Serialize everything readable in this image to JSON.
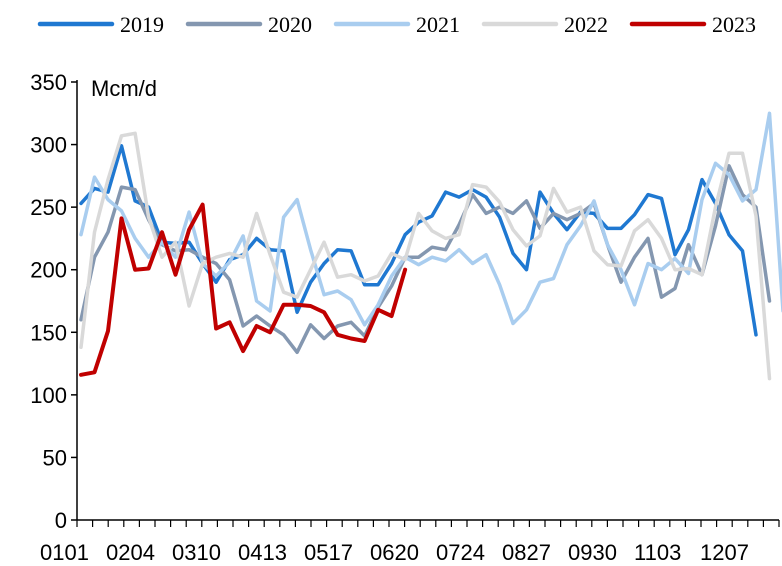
{
  "chart_data": {
    "type": "line",
    "ylabel": "Mcm/d",
    "ylim": [
      0,
      350
    ],
    "yticks": [
      0,
      50,
      100,
      150,
      200,
      250,
      300,
      350
    ],
    "xtick_labels": [
      "0101",
      "0204",
      "0310",
      "0413",
      "0517",
      "0620",
      "0724",
      "0827",
      "0930",
      "1103",
      "1207"
    ],
    "legend_position": "top",
    "grid": false,
    "series": [
      {
        "name": "2019",
        "color": "#1f78d1",
        "values": [
          253,
          265,
          262,
          299,
          255,
          250,
          222,
          221,
          222,
          205,
          190,
          208,
          212,
          225,
          216,
          215,
          166,
          190,
          205,
          216,
          215,
          188,
          188,
          205,
          228,
          238,
          243,
          262,
          258,
          264,
          258,
          242,
          213,
          200,
          262,
          245,
          232,
          246,
          245,
          233,
          233,
          244,
          260,
          257,
          212,
          232,
          272,
          253,
          228,
          215,
          148
        ]
      },
      {
        "name": "2020",
        "color": "#8497b0",
        "values": [
          160,
          210,
          230,
          266,
          264,
          240,
          220,
          215,
          216,
          210,
          205,
          192,
          155,
          163,
          155,
          148,
          134,
          156,
          145,
          155,
          158,
          147,
          170,
          187,
          210,
          210,
          218,
          216,
          236,
          260,
          245,
          250,
          245,
          255,
          233,
          245,
          240,
          245,
          253,
          220,
          190,
          210,
          225,
          178,
          185,
          220,
          196,
          235,
          283,
          260,
          250,
          175
        ]
      },
      {
        "name": "2021",
        "color": "#a9cdef",
        "values": [
          228,
          274,
          256,
          247,
          225,
          210,
          222,
          210,
          246,
          205,
          195,
          206,
          227,
          175,
          167,
          242,
          256,
          216,
          180,
          183,
          176,
          156,
          172,
          195,
          210,
          204,
          210,
          207,
          216,
          205,
          212,
          188,
          157,
          168,
          190,
          193,
          220,
          235,
          255,
          220,
          200,
          172,
          205,
          200,
          209,
          197,
          256,
          285,
          276,
          255,
          264,
          325,
          167
        ]
      },
      {
        "name": "2022",
        "color": "#d9d9d9",
        "values": [
          138,
          230,
          272,
          307,
          309,
          242,
          210,
          222,
          171,
          205,
          210,
          213,
          210,
          245,
          212,
          182,
          178,
          200,
          222,
          194,
          196,
          191,
          195,
          213,
          208,
          245,
          231,
          225,
          228,
          268,
          266,
          254,
          232,
          219,
          227,
          265,
          246,
          250,
          215,
          204,
          203,
          231,
          240,
          225,
          200,
          201,
          196,
          250,
          293,
          293,
          243,
          113
        ]
      },
      {
        "name": "2023",
        "color": "#c00000",
        "values": [
          116,
          118,
          151,
          241,
          200,
          201,
          230,
          196,
          232,
          252,
          153,
          158,
          135,
          155,
          150,
          172,
          172,
          171,
          166,
          148,
          145,
          143,
          168,
          163,
          200
        ]
      }
    ]
  }
}
